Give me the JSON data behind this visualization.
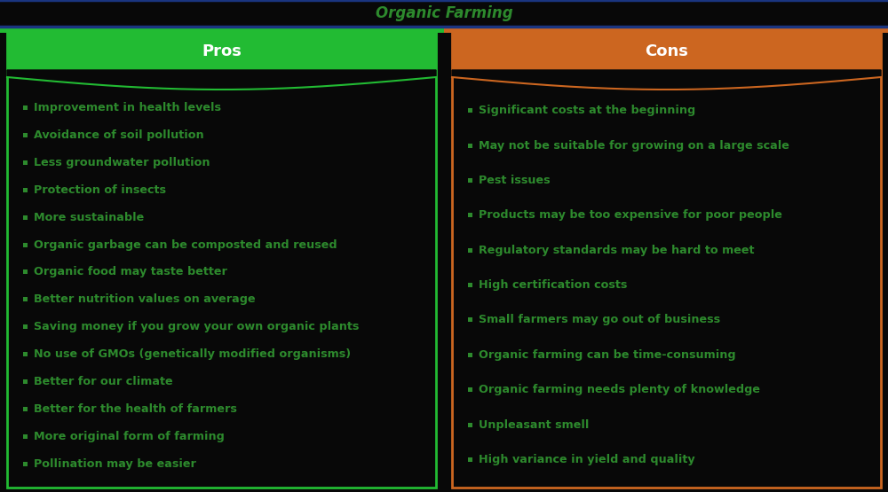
{
  "title": "Organic Farming",
  "title_color": "#2d8a2d",
  "title_bg_color": "#080808",
  "title_border_color": "#1a3580",
  "title_fontsize": 12,
  "pros_header": "Pros",
  "cons_header": "Cons",
  "pros_header_bg": "#22bb33",
  "cons_header_bg": "#cc6620",
  "header_text_color": "#ffffff",
  "panel_bg": "#080808",
  "panel_border_pros": "#22bb33",
  "panel_border_cons": "#cc6620",
  "text_color": "#2d8a2d",
  "bullet_color": "#2d8a2d",
  "pros_items": [
    "Improvement in health levels",
    "Avoidance of soil pollution",
    "Less groundwater pollution",
    "Protection of insects",
    "More sustainable",
    "Organic garbage can be composted and reused",
    "Organic food may taste better",
    "Better nutrition values on average",
    "Saving money if you grow your own organic plants",
    "No use of GMOs (genetically modified organisms)",
    "Better for our climate",
    "Better for the health of farmers",
    "More original form of farming",
    "Pollination may be easier"
  ],
  "cons_items": [
    "Significant costs at the beginning",
    "May not be suitable for growing on a large scale",
    "Pest issues",
    "Products may be too expensive for poor people",
    "Regulatory standards may be hard to meet",
    "High certification costs",
    "Small farmers may go out of business",
    "Organic farming can be time-consuming",
    "Organic farming needs plenty of knowledge",
    "Unpleasant smell",
    "High variance in yield and quality"
  ],
  "item_fontsize": 9.2,
  "header_fontsize": 13
}
